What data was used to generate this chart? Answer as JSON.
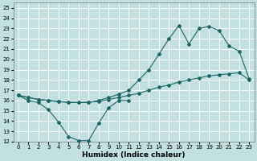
{
  "xlabel": "Humidex (Indice chaleur)",
  "bg_color": "#c2e0e0",
  "grid_color": "#ffffff",
  "line_color": "#1a6666",
  "xlim": [
    -0.5,
    23.5
  ],
  "ylim": [
    12,
    25.5
  ],
  "xticks": [
    0,
    1,
    2,
    3,
    4,
    5,
    6,
    7,
    8,
    9,
    10,
    11,
    12,
    13,
    14,
    15,
    16,
    17,
    18,
    19,
    20,
    21,
    22,
    23
  ],
  "yticks": [
    12,
    13,
    14,
    15,
    16,
    17,
    18,
    19,
    20,
    21,
    22,
    23,
    24,
    25
  ],
  "curve1_x": [
    0,
    1,
    2,
    3,
    4,
    5,
    6,
    7,
    8,
    9,
    10,
    11
  ],
  "curve1_y": [
    16.5,
    16.0,
    15.8,
    15.1,
    13.9,
    12.5,
    12.1,
    12.1,
    13.8,
    15.3,
    16.0,
    16.0
  ],
  "curve2_x": [
    0,
    1,
    2,
    3,
    4,
    5,
    6,
    7,
    8,
    9,
    10,
    11,
    12,
    13,
    14,
    15,
    16,
    17,
    18,
    19,
    20,
    21,
    22,
    23
  ],
  "curve2_y": [
    16.5,
    16.3,
    16.1,
    16.0,
    15.9,
    15.85,
    15.8,
    15.85,
    15.9,
    16.1,
    16.3,
    16.5,
    16.7,
    17.0,
    17.3,
    17.5,
    17.8,
    18.0,
    18.2,
    18.4,
    18.5,
    18.6,
    18.7,
    18.0
  ],
  "curve3_x": [
    0,
    1,
    2,
    3,
    4,
    5,
    6,
    7,
    8,
    9,
    10,
    11,
    12,
    13,
    14,
    15,
    16,
    17,
    18,
    19,
    20,
    21,
    22,
    23
  ],
  "curve3_y": [
    16.5,
    16.3,
    16.1,
    16.0,
    15.9,
    15.8,
    15.8,
    15.8,
    16.0,
    16.3,
    16.6,
    17.0,
    18.0,
    19.0,
    20.5,
    22.0,
    23.3,
    21.5,
    23.0,
    23.2,
    22.8,
    21.3,
    20.8,
    18.1
  ]
}
